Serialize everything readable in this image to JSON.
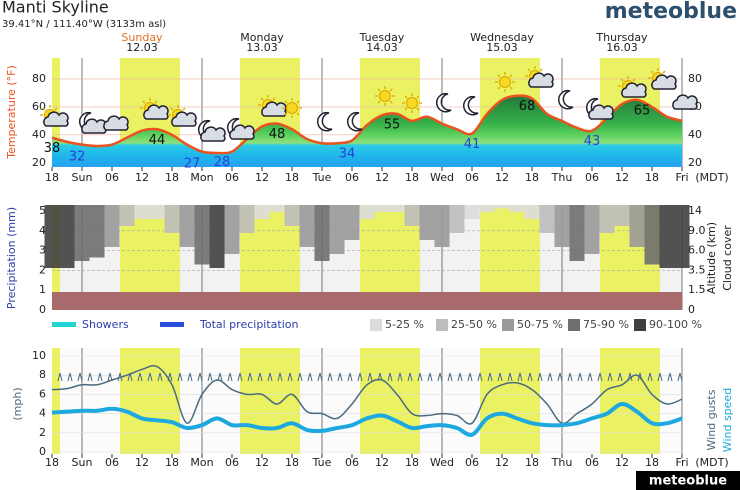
{
  "header": {
    "title": "Manti Skyline",
    "subtitle": "39.41°N / 111.40°W (3133m asl)",
    "logo": "meteoblue",
    "footer": "meteoblue"
  },
  "days": [
    {
      "name": "Sunday",
      "date": "12.03"
    },
    {
      "name": "Monday",
      "date": "13.03"
    },
    {
      "name": "Tuesday",
      "date": "14.03"
    },
    {
      "name": "Wednesday",
      "date": "15.03"
    },
    {
      "name": "Thursday",
      "date": "16.03"
    }
  ],
  "daylight": [
    [
      0,
      1.6
    ],
    [
      13.6,
      25.6
    ],
    [
      37.6,
      49.6
    ],
    [
      61.6,
      73.6
    ],
    [
      85.6,
      97.6
    ],
    [
      109.6,
      121.6
    ]
  ],
  "chart_data": [
    {
      "type": "area",
      "ylabel": "Temperature (°F)",
      "xlabel": "(MDT)",
      "color": "#e8531f",
      "x": [
        0,
        3,
        6,
        9,
        12,
        15,
        18,
        21,
        24,
        27,
        30,
        33,
        36,
        39,
        42,
        45,
        48,
        51,
        54,
        57,
        60,
        63,
        66,
        69,
        72,
        75,
        78,
        81,
        84,
        87,
        90,
        93,
        96,
        99,
        102,
        105,
        108,
        111,
        114,
        117,
        120,
        123,
        126
      ],
      "values": [
        38,
        35,
        33,
        32,
        33,
        38,
        43,
        44,
        40,
        33,
        28,
        27,
        28,
        37,
        46,
        48,
        44,
        37,
        34,
        34,
        36,
        47,
        54,
        55,
        50,
        53,
        48,
        44,
        41,
        55,
        65,
        68,
        66,
        55,
        50,
        45,
        43,
        52,
        62,
        65,
        60,
        53,
        50
      ],
      "temp_labels": {
        "x": [
          0,
          5,
          21,
          28,
          34,
          45,
          59,
          68,
          84,
          95,
          108,
          118
        ],
        "values": [
          38,
          32,
          44,
          27,
          28,
          48,
          34,
          55,
          41,
          68,
          43,
          65
        ]
      },
      "xlim": [
        0,
        126
      ],
      "xticks": [
        {
          "value": 0,
          "label": "18"
        },
        {
          "value": 6,
          "label": "Sun"
        },
        {
          "value": 12,
          "label": "06"
        },
        {
          "value": 18,
          "label": "12"
        },
        {
          "value": 24,
          "label": "18"
        },
        {
          "value": 30,
          "label": "Mon"
        },
        {
          "value": 36,
          "label": "06"
        },
        {
          "value": 42,
          "label": "12"
        },
        {
          "value": 48,
          "label": "18"
        },
        {
          "value": 54,
          "label": "Tue"
        },
        {
          "value": 60,
          "label": "06"
        },
        {
          "value": 66,
          "label": "12"
        },
        {
          "value": 72,
          "label": "18"
        },
        {
          "value": 78,
          "label": "Wed"
        },
        {
          "value": 84,
          "label": "06"
        },
        {
          "value": 90,
          "label": "12"
        },
        {
          "value": 96,
          "label": "18"
        },
        {
          "value": 102,
          "label": "Thu"
        },
        {
          "value": 108,
          "label": "06"
        },
        {
          "value": 114,
          "label": "12"
        },
        {
          "value": 120,
          "label": "18"
        },
        {
          "value": 126,
          "label": "Fri"
        }
      ],
      "ylim": [
        17,
        95
      ],
      "yticks": [
        20,
        40,
        60,
        80
      ],
      "y2lim": [
        17,
        95
      ],
      "y2ticks": [
        20,
        40,
        60,
        80
      ]
    },
    {
      "type": "bar",
      "ylabel": "Precipitation (mm)",
      "y2label": "Altitude (km)",
      "y3label": "Cloud cover",
      "x": [
        0,
        3,
        6,
        9,
        12,
        15,
        18,
        21,
        24,
        27,
        30,
        33,
        36,
        39,
        42,
        45,
        48,
        51,
        54,
        57,
        60,
        63,
        66,
        69,
        72,
        75,
        78,
        81,
        84,
        87,
        90,
        93,
        96,
        99,
        102,
        105,
        108,
        111,
        114,
        117,
        120,
        123,
        126
      ],
      "xlim": [
        0,
        126
      ],
      "ylim": [
        0,
        5
      ],
      "yticks": [
        0,
        1,
        2,
        3,
        4,
        5
      ],
      "y2lim": [
        0,
        14
      ],
      "y2ticks": [
        0,
        1.5,
        3.5,
        {
          "value": 6,
          "label": "6.0"
        },
        {
          "value": 9,
          "label": "9.0"
        },
        14
      ],
      "series": [
        {
          "name": "Showers",
          "color": "#22d3d3",
          "values": [
            0,
            0,
            0,
            0,
            0,
            0,
            0,
            0,
            0,
            0,
            0,
            0,
            0,
            0,
            0,
            0,
            0,
            0,
            0,
            0,
            0,
            0,
            0,
            0,
            0,
            0,
            0,
            0,
            0,
            0,
            0,
            0,
            0,
            0,
            0,
            0,
            0,
            0,
            0,
            0,
            0,
            0,
            0
          ]
        },
        {
          "name": "Total precipitation",
          "color": "#2a4fdc",
          "values": [
            0,
            0,
            0,
            0,
            0,
            0,
            0,
            0,
            0,
            0,
            0,
            0,
            0,
            0,
            0,
            0,
            0,
            0,
            0,
            0,
            0,
            0,
            0,
            0,
            0,
            0,
            0,
            0,
            0,
            0,
            0,
            0,
            0,
            0,
            0,
            0,
            0,
            0,
            0,
            0,
            0,
            0,
            0
          ]
        }
      ],
      "cloud_cover": [
        90,
        90,
        80,
        75,
        60,
        30,
        20,
        20,
        40,
        60,
        85,
        90,
        70,
        40,
        20,
        10,
        30,
        60,
        80,
        70,
        50,
        20,
        10,
        10,
        30,
        50,
        60,
        40,
        20,
        10,
        5,
        10,
        20,
        40,
        60,
        80,
        70,
        40,
        30,
        60,
        85,
        90,
        90
      ],
      "cloud_legend": [
        {
          "label": "5-25 %",
          "color": "#dcdcdc",
          "from": 5
        },
        {
          "label": "25-50 %",
          "color": "#bdbdbd",
          "from": 25
        },
        {
          "label": "50-75 %",
          "color": "#999999",
          "from": 50
        },
        {
          "label": "75-90 %",
          "color": "#6e6e6e",
          "from": 75
        },
        {
          "label": "90-100 %",
          "color": "#404040",
          "from": 90
        }
      ]
    },
    {
      "type": "line",
      "ylabel": "(mph)",
      "xlabel": "(MDT)",
      "x": [
        0,
        3,
        6,
        9,
        12,
        15,
        18,
        21,
        24,
        27,
        30,
        33,
        36,
        39,
        42,
        45,
        48,
        51,
        54,
        57,
        60,
        63,
        66,
        69,
        72,
        75,
        78,
        81,
        84,
        87,
        90,
        93,
        96,
        99,
        102,
        105,
        108,
        111,
        114,
        117,
        120,
        123,
        126
      ],
      "xlim": [
        0,
        126
      ],
      "xticks": [
        {
          "value": 0,
          "label": "18"
        },
        {
          "value": 6,
          "label": "Sun"
        },
        {
          "value": 12,
          "label": "06"
        },
        {
          "value": 18,
          "label": "12"
        },
        {
          "value": 24,
          "label": "18"
        },
        {
          "value": 30,
          "label": "Mon"
        },
        {
          "value": 36,
          "label": "06"
        },
        {
          "value": 42,
          "label": "12"
        },
        {
          "value": 48,
          "label": "18"
        },
        {
          "value": 54,
          "label": "Tue"
        },
        {
          "value": 60,
          "label": "06"
        },
        {
          "value": 66,
          "label": "12"
        },
        {
          "value": 72,
          "label": "18"
        },
        {
          "value": 78,
          "label": "Wed"
        },
        {
          "value": 84,
          "label": "06"
        },
        {
          "value": 90,
          "label": "12"
        },
        {
          "value": 96,
          "label": "18"
        },
        {
          "value": 102,
          "label": "Thu"
        },
        {
          "value": 108,
          "label": "06"
        },
        {
          "value": 114,
          "label": "12"
        },
        {
          "value": 120,
          "label": "18"
        },
        {
          "value": 126,
          "label": "Fri"
        }
      ],
      "ylim": [
        0,
        10
      ],
      "yticks": [
        0,
        2,
        4,
        6,
        8,
        10
      ],
      "series": [
        {
          "name": "Wind gusts",
          "color": "#4a6a80",
          "values": [
            6.5,
            6.6,
            7,
            7,
            7.5,
            8,
            8.6,
            8.9,
            7,
            3,
            6,
            7.5,
            6.5,
            6,
            6,
            5,
            6,
            4.2,
            4,
            3.5,
            5,
            7,
            7.5,
            6,
            4,
            3.8,
            4,
            3.8,
            3,
            6,
            7,
            7.2,
            6.5,
            5,
            3,
            4,
            5,
            6.5,
            7,
            8,
            6,
            5,
            5.5
          ]
        },
        {
          "name": "Wind speed",
          "color": "#1ea8e0",
          "values": [
            4.1,
            4.2,
            4.3,
            4.3,
            4.5,
            4.2,
            3.5,
            3.3,
            3.1,
            2.5,
            2.8,
            3.5,
            2.8,
            2.8,
            2.5,
            2.5,
            3,
            2.3,
            2.2,
            2.5,
            2.8,
            3.5,
            3.8,
            3.2,
            2.5,
            2.7,
            2.8,
            2.5,
            1.8,
            3.5,
            4,
            3.5,
            3,
            2.8,
            2.8,
            3,
            3.5,
            4,
            5,
            4.2,
            3,
            3,
            3.5
          ]
        }
      ]
    }
  ]
}
